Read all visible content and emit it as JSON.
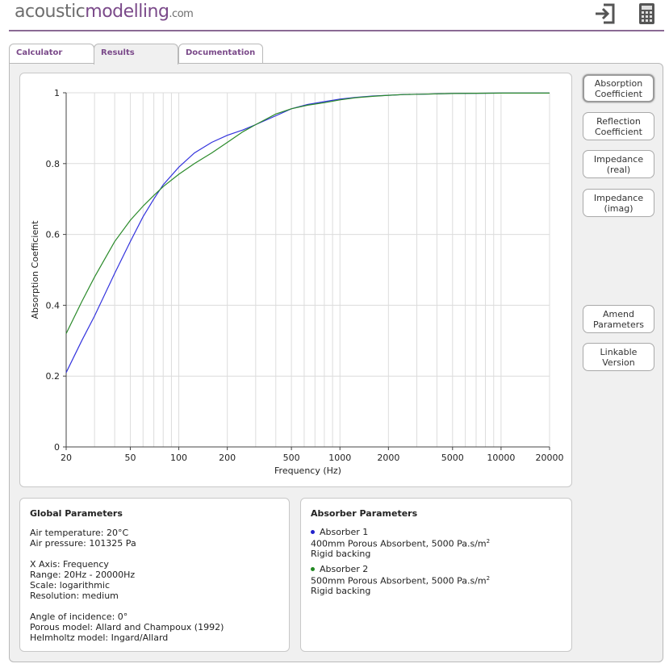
{
  "logo": {
    "part1": "acoustic",
    "part2": "modelling",
    "part3": ".com"
  },
  "header": {
    "icons": [
      "login-icon",
      "calculator-icon"
    ],
    "accent": "#7b4a8a"
  },
  "tabs": [
    {
      "label": "Calculator",
      "active": false
    },
    {
      "label": "Results",
      "active": true
    },
    {
      "label": "Documentation",
      "active": false
    }
  ],
  "side_buttons": [
    {
      "label": "Absorption\nCoefficient",
      "selected": true
    },
    {
      "label": "Reflection\nCoefficient",
      "selected": false
    },
    {
      "label": "Impedance\n(real)",
      "selected": false
    },
    {
      "label": "Impedance\n(imag)",
      "selected": false
    },
    {
      "label": "Amend\nParameters",
      "selected": false
    },
    {
      "label": "Linkable\nVersion",
      "selected": false
    }
  ],
  "chart_data": {
    "type": "line",
    "xlabel": "Frequency (Hz)",
    "ylabel": "Absorption Coefficient",
    "xscale": "log",
    "xlim": [
      20,
      20000
    ],
    "ylim": [
      0,
      1
    ],
    "x_ticks": [
      "20",
      "50",
      "100",
      "200",
      "500",
      "1000",
      "2000",
      "5000",
      "10000",
      "20000"
    ],
    "y_ticks": [
      "0",
      "0.2",
      "0.4",
      "0.6",
      "0.8",
      "1"
    ],
    "grid": true,
    "series": [
      {
        "color": "#3333dd",
        "x": [
          20,
          25,
          30,
          40,
          50,
          60,
          70,
          80,
          100,
          125,
          160,
          200,
          250,
          300,
          400,
          500,
          630,
          800,
          1000,
          1250,
          1600,
          2000,
          2500,
          3150,
          5000,
          10000,
          20000
        ],
        "values": [
          0.21,
          0.3,
          0.37,
          0.49,
          0.58,
          0.65,
          0.7,
          0.74,
          0.79,
          0.83,
          0.86,
          0.88,
          0.895,
          0.91,
          0.935,
          0.955,
          0.967,
          0.975,
          0.982,
          0.987,
          0.991,
          0.993,
          0.995,
          0.996,
          0.998,
          0.999,
          0.999
        ]
      },
      {
        "color": "#2a8a2a",
        "x": [
          20,
          25,
          30,
          40,
          50,
          60,
          70,
          80,
          100,
          125,
          160,
          200,
          250,
          300,
          400,
          500,
          630,
          800,
          1000,
          1250,
          1600,
          2000,
          2500,
          3150,
          5000,
          10000,
          20000
        ],
        "values": [
          0.32,
          0.41,
          0.48,
          0.58,
          0.64,
          0.68,
          0.71,
          0.735,
          0.77,
          0.8,
          0.83,
          0.86,
          0.89,
          0.91,
          0.94,
          0.955,
          0.965,
          0.972,
          0.98,
          0.986,
          0.99,
          0.993,
          0.995,
          0.996,
          0.998,
          0.999,
          0.999
        ]
      }
    ]
  },
  "global_params": {
    "title": "Global Parameters",
    "lines": [
      "Air temperature: 20°C",
      "Air pressure: 101325 Pa",
      "X Axis: Frequency",
      "Range: 20Hz - 20000Hz",
      "Scale: logarithmic",
      "Resolution: medium",
      "Angle of incidence: 0°",
      "Porous model: Allard and Champoux (1992)",
      "Helmholtz model: Ingard/Allard"
    ]
  },
  "absorber_params": {
    "title": "Absorber Parameters",
    "absorbers": [
      {
        "name": "Absorber 1",
        "color": "#2222cc",
        "desc": "400mm Porous Absorbent, 5000 Pa.s/m",
        "sup": "2",
        "backing": "Rigid backing"
      },
      {
        "name": "Absorber 2",
        "color": "#228822",
        "desc": "500mm Porous Absorbent, 5000 Pa.s/m",
        "sup": "2",
        "backing": "Rigid backing"
      }
    ]
  }
}
